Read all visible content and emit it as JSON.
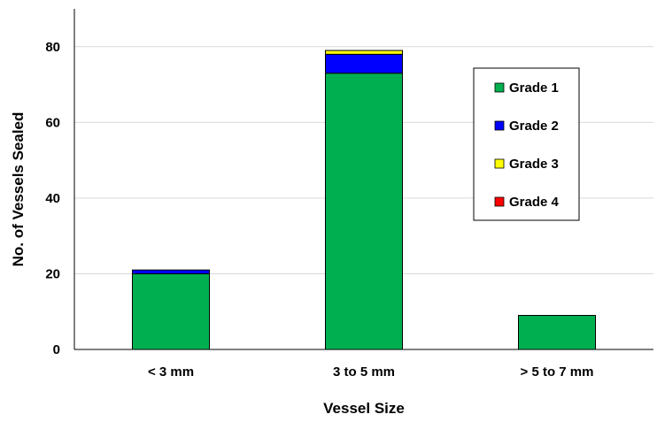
{
  "chart_data": {
    "type": "bar",
    "stacked": true,
    "title": "",
    "xlabel": "Vessel Size",
    "ylabel": "No. of Vessels Sealed",
    "categories": [
      "< 3 mm",
      "3 to 5 mm",
      "> 5 to 7 mm"
    ],
    "series": [
      {
        "name": "Grade 1",
        "color": "#00b050",
        "values": [
          20,
          73,
          9
        ]
      },
      {
        "name": "Grade 2",
        "color": "#0000ff",
        "values": [
          1,
          5,
          0
        ]
      },
      {
        "name": "Grade 3",
        "color": "#ffff00",
        "values": [
          0,
          1,
          0
        ]
      },
      {
        "name": "Grade 4",
        "color": "#ff0000",
        "values": [
          0,
          0,
          0
        ]
      }
    ],
    "ylim": [
      0,
      90
    ],
    "yticks": [
      0,
      20,
      40,
      60,
      80
    ],
    "grid": true,
    "legend_position": "right"
  }
}
